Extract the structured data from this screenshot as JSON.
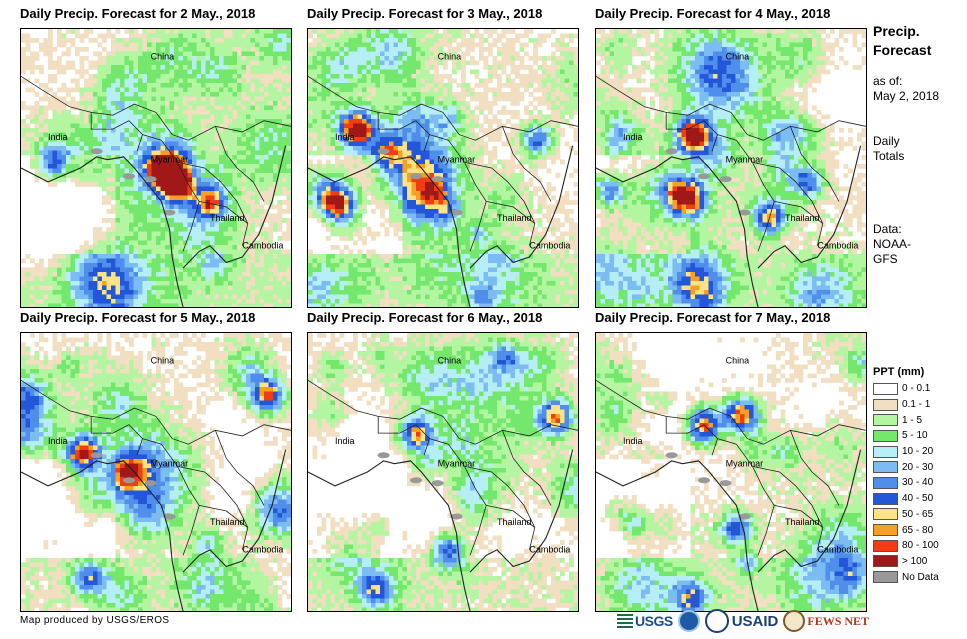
{
  "panels": [
    {
      "title": "Daily Precip. Forecast for 2 May., 2018",
      "seed": 11,
      "wet": 0.55,
      "hotspots": [
        [
          0.58,
          0.55,
          2.0
        ],
        [
          0.52,
          0.5,
          1.6
        ],
        [
          0.7,
          0.62,
          1.2
        ],
        [
          0.12,
          0.48,
          1.1
        ]
      ]
    },
    {
      "title": "Daily Precip. Forecast for 3 May., 2018",
      "seed": 23,
      "wet": 0.48,
      "hotspots": [
        [
          0.18,
          0.36,
          1.6
        ],
        [
          0.1,
          0.62,
          1.4
        ],
        [
          0.3,
          0.45,
          1.0
        ],
        [
          0.85,
          0.4,
          1.1
        ]
      ]
    },
    {
      "title": "Daily Precip. Forecast for 4 May., 2018",
      "seed": 37,
      "wet": 0.42,
      "hotspots": [
        [
          0.36,
          0.38,
          1.8
        ],
        [
          0.65,
          0.68,
          1.3
        ],
        [
          0.05,
          0.58,
          1.0
        ],
        [
          0.78,
          0.55,
          1.0
        ]
      ]
    },
    {
      "title": "Daily Precip. Forecast for 5 May., 2018",
      "seed": 41,
      "wet": 0.4,
      "hotspots": [
        [
          0.23,
          0.43,
          1.5
        ],
        [
          0.92,
          0.22,
          1.3
        ],
        [
          0.4,
          0.5,
          1.2
        ],
        [
          0.25,
          0.88,
          1.0
        ]
      ]
    },
    {
      "title": "Daily Precip. Forecast for 6 May., 2018",
      "seed": 53,
      "wet": 0.38,
      "hotspots": [
        [
          0.4,
          0.36,
          1.4
        ],
        [
          0.92,
          0.3,
          1.4
        ],
        [
          0.52,
          0.78,
          1.1
        ],
        [
          0.25,
          0.92,
          1.0
        ]
      ]
    },
    {
      "title": "Daily Precip. Forecast for 7 May., 2018",
      "seed": 67,
      "wet": 0.4,
      "hotspots": [
        [
          0.4,
          0.33,
          1.5
        ],
        [
          0.55,
          0.3,
          1.2
        ],
        [
          0.52,
          0.7,
          1.1
        ],
        [
          0.35,
          0.95,
          1.0
        ]
      ]
    }
  ],
  "map_labels": {
    "china": "China",
    "india": "India",
    "myanmar": "Myanmar",
    "thailand": "Thailand",
    "cambodia": "Cambodia"
  },
  "sidebar": {
    "title_line1": "Precip.",
    "title_line2": "Forecast",
    "asof_line1": "as of:",
    "asof_line2": "May 2, 2018",
    "totals_line1": "Daily",
    "totals_line2": "Totals",
    "data_line1": "Data:",
    "data_line2": "NOAA-",
    "data_line3": "GFS"
  },
  "legend": {
    "title": "PPT (mm)",
    "items": [
      {
        "label": "0 - 0.1",
        "color": "#ffffff"
      },
      {
        "label": "0.1 - 1",
        "color": "#f2dfc2"
      },
      {
        "label": "1 - 5",
        "color": "#b3f5a0"
      },
      {
        "label": "5 - 10",
        "color": "#73e86c"
      },
      {
        "label": "10 - 20",
        "color": "#b5eef5"
      },
      {
        "label": "20 - 30",
        "color": "#7bbcf2"
      },
      {
        "label": "30 - 40",
        "color": "#4f8eea"
      },
      {
        "label": "40 - 50",
        "color": "#2357d8"
      },
      {
        "label": "50 - 65",
        "color": "#fbe386"
      },
      {
        "label": "65 - 80",
        "color": "#f7a024"
      },
      {
        "label": "80 - 100",
        "color": "#f03d12"
      },
      {
        "label": "> 100",
        "color": "#a01818"
      },
      {
        "label": "No Data",
        "color": "#999999"
      }
    ]
  },
  "credit": "Map produced by USGS/EROS",
  "logos": {
    "usgs": "USGS",
    "usaid": "USAID",
    "fews": "FEWS NET"
  }
}
